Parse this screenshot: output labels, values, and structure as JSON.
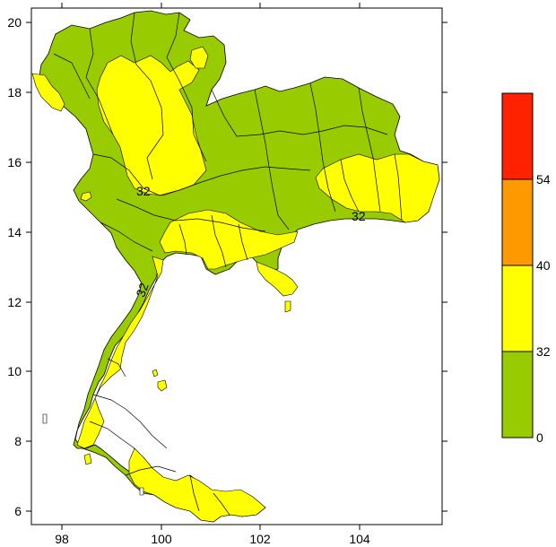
{
  "map": {
    "colors": {
      "low": "#99cc00",
      "mid": "#ffff00",
      "frame": "#000000",
      "border": "#000000"
    },
    "x_ticks": [
      "98",
      "100",
      "102",
      "104"
    ],
    "y_ticks": [
      "20",
      "18",
      "16",
      "14",
      "12",
      "10",
      "8",
      "6"
    ],
    "contour_labels": [
      "32",
      "32",
      "32"
    ]
  },
  "legend": {
    "bins": [
      {
        "from": "0",
        "to": "32",
        "color": "#99cc00"
      },
      {
        "from": "32",
        "to": "40",
        "color": "#ffff00"
      },
      {
        "from": "40",
        "to": "54",
        "color": "#ff9900"
      },
      {
        "from": "54",
        "to": "",
        "color": "#ff2200"
      }
    ],
    "labels": [
      "54",
      "40",
      "32",
      "0"
    ]
  }
}
